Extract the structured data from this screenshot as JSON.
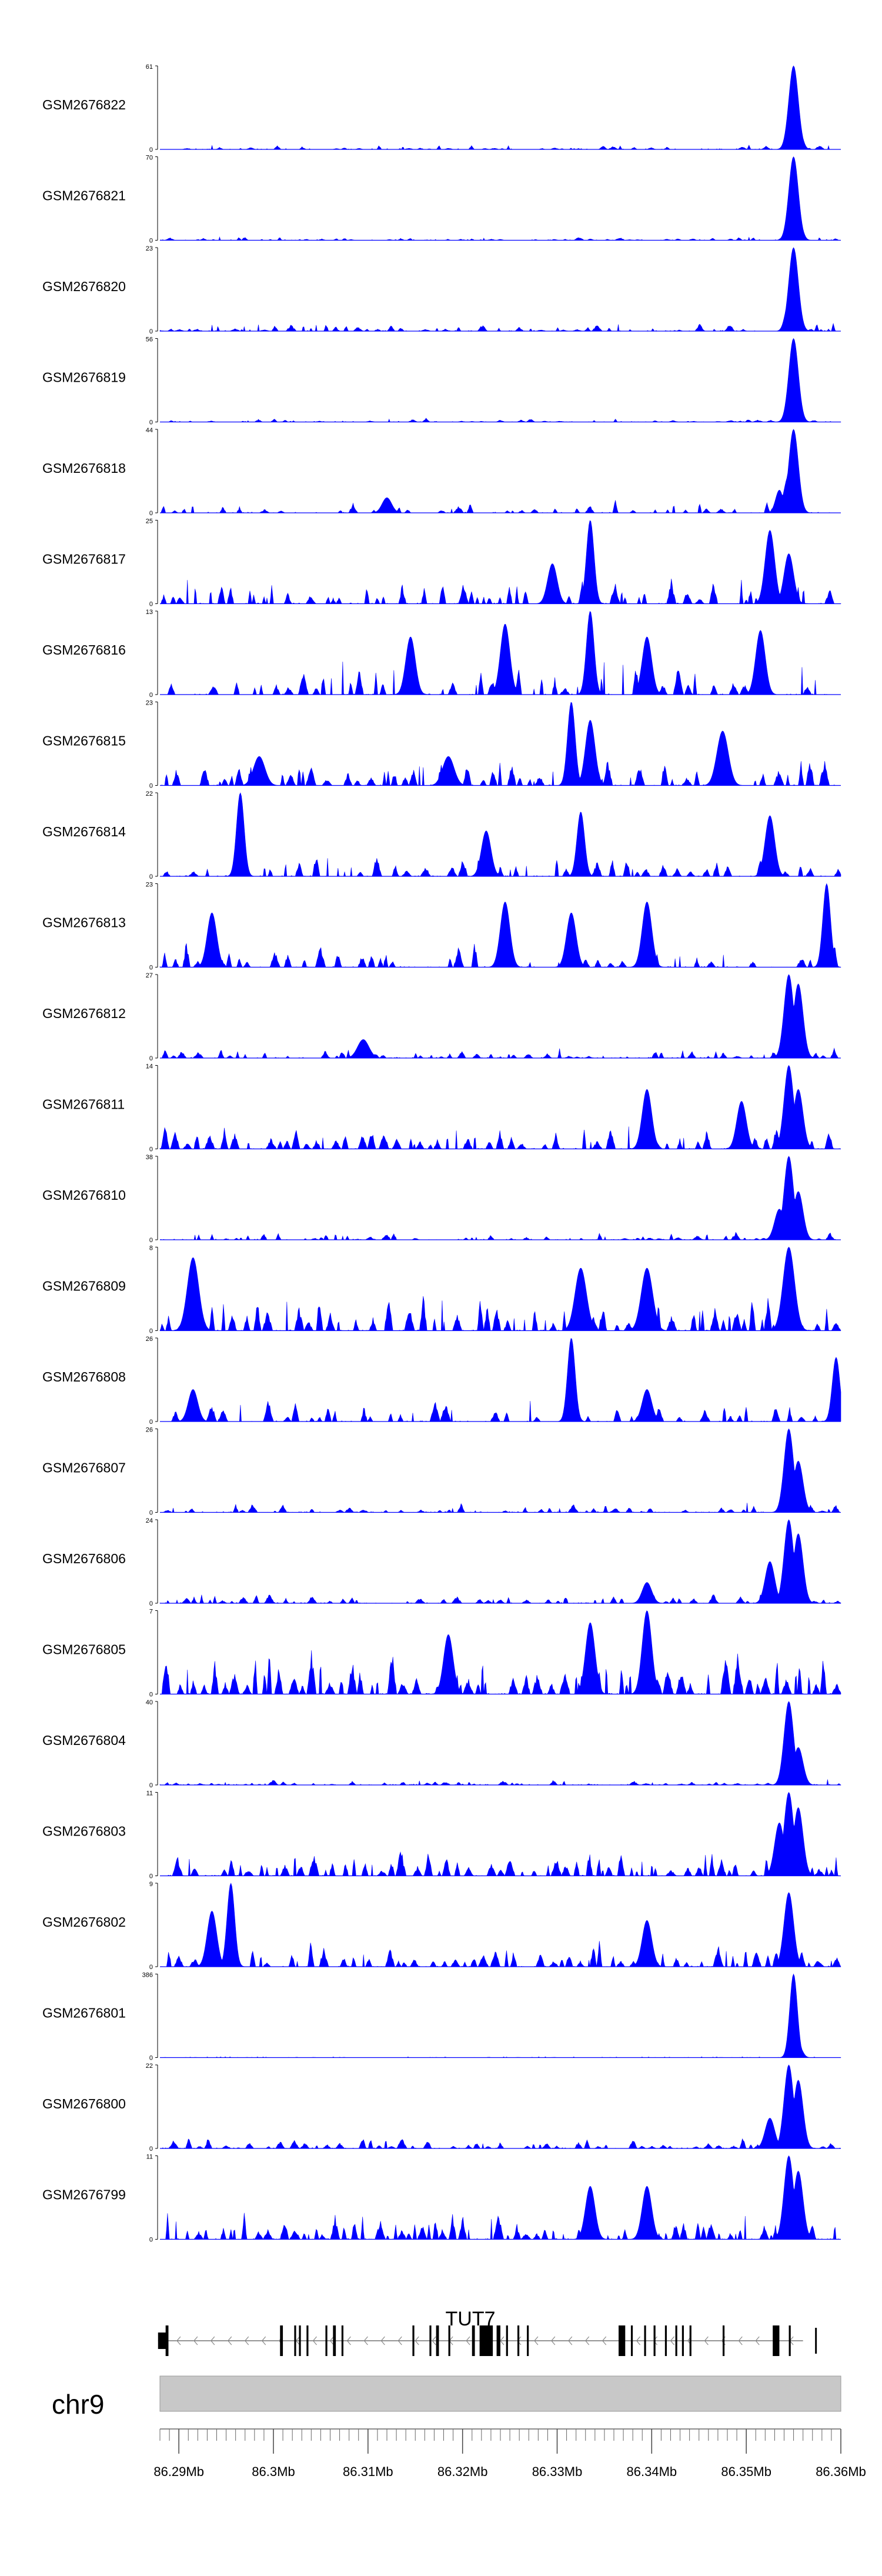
{
  "chart_data": {
    "type": "area",
    "genome": "chr9",
    "gene": "TUT7",
    "strand": "-",
    "x_unit": "Mb",
    "xlim": [
      86.288,
      86.36
    ],
    "x_ticks": [
      86.29,
      86.3,
      86.31,
      86.32,
      86.33,
      86.34,
      86.35,
      86.36
    ],
    "x_tick_labels": [
      "86.29Mb",
      "86.3Mb",
      "86.31Mb",
      "86.32Mb",
      "86.33Mb",
      "86.34Mb",
      "86.35Mb",
      "86.36Mb"
    ],
    "fill_color": "#0000ff",
    "gene_color": "#000000",
    "ideogram_color": "#c8c8c8",
    "tracks": [
      {
        "name": "GSM2676822",
        "ymax": 61,
        "ymin": 0,
        "peaks": [
          [
            86.355,
            61,
            0.0005
          ],
          [
            86.3555,
            18,
            0.0004
          ]
        ],
        "noise": 0.06,
        "density": 0.35,
        "seed": 22
      },
      {
        "name": "GSM2676821",
        "ymax": 70,
        "ymin": 0,
        "peaks": [
          [
            86.355,
            70,
            0.0005
          ],
          [
            86.3555,
            20,
            0.0004
          ]
        ],
        "noise": 0.05,
        "density": 0.35,
        "seed": 21
      },
      {
        "name": "GSM2676820",
        "ymax": 23,
        "ymin": 0,
        "peaks": [
          [
            86.355,
            23,
            0.0005
          ],
          [
            86.3545,
            8,
            0.0004
          ]
        ],
        "noise": 0.1,
        "density": 0.5,
        "seed": 20
      },
      {
        "name": "GSM2676819",
        "ymax": 56,
        "ymin": 0,
        "peaks": [
          [
            86.355,
            56,
            0.0005
          ],
          [
            86.3555,
            14,
            0.0004
          ]
        ],
        "noise": 0.05,
        "density": 0.3,
        "seed": 19
      },
      {
        "name": "GSM2676818",
        "ymax": 44,
        "ymin": 0,
        "peaks": [
          [
            86.355,
            44,
            0.0005
          ],
          [
            86.3545,
            20,
            0.0005
          ],
          [
            86.3535,
            12,
            0.0004
          ],
          [
            86.312,
            8,
            0.0005
          ]
        ],
        "noise": 0.18,
        "density": 0.3,
        "seed": 18
      },
      {
        "name": "GSM2676817",
        "ymax": 25,
        "ymin": 0,
        "peaks": [
          [
            86.3335,
            25,
            0.0004
          ],
          [
            86.3525,
            22,
            0.0005
          ],
          [
            86.3545,
            15,
            0.0005
          ],
          [
            86.3295,
            12,
            0.0005
          ]
        ],
        "noise": 0.35,
        "density": 0.5,
        "seed": 17
      },
      {
        "name": "GSM2676816",
        "ymax": 13,
        "ymin": 0,
        "peaks": [
          [
            86.3335,
            13,
            0.0004
          ],
          [
            86.3245,
            11,
            0.0005
          ],
          [
            86.3515,
            10,
            0.0005
          ],
          [
            86.3395,
            9,
            0.0005
          ],
          [
            86.3145,
            9,
            0.0005
          ]
        ],
        "noise": 0.45,
        "density": 0.45,
        "seed": 16
      },
      {
        "name": "GSM2676815",
        "ymax": 23,
        "ymin": 0,
        "peaks": [
          [
            86.3315,
            23,
            0.0004
          ],
          [
            86.3335,
            18,
            0.0005
          ],
          [
            86.3475,
            15,
            0.0006
          ],
          [
            86.2985,
            8,
            0.0006
          ],
          [
            86.3185,
            8,
            0.0006
          ]
        ],
        "noise": 0.35,
        "density": 0.45,
        "seed": 15
      },
      {
        "name": "GSM2676814",
        "ymax": 22,
        "ymin": 0,
        "peaks": [
          [
            86.2965,
            22,
            0.0004
          ],
          [
            86.3325,
            17,
            0.0004
          ],
          [
            86.3525,
            16,
            0.0005
          ],
          [
            86.3225,
            12,
            0.0005
          ]
        ],
        "noise": 0.3,
        "density": 0.5,
        "seed": 14
      },
      {
        "name": "GSM2676813",
        "ymax": 23,
        "ymin": 0,
        "peaks": [
          [
            86.3585,
            23,
            0.0004
          ],
          [
            86.3245,
            18,
            0.0005
          ],
          [
            86.3395,
            18,
            0.0005
          ],
          [
            86.2935,
            15,
            0.0005
          ],
          [
            86.3315,
            15,
            0.0005
          ]
        ],
        "noise": 0.35,
        "density": 0.4,
        "seed": 13
      },
      {
        "name": "GSM2676812",
        "ymax": 27,
        "ymin": 0,
        "peaks": [
          [
            86.3545,
            27,
            0.0005
          ],
          [
            86.3555,
            24,
            0.0005
          ],
          [
            86.3095,
            6,
            0.0006
          ]
        ],
        "noise": 0.12,
        "density": 0.45,
        "seed": 12
      },
      {
        "name": "GSM2676811",
        "ymax": 14,
        "ymin": 0,
        "peaks": [
          [
            86.3545,
            14,
            0.0005
          ],
          [
            86.3555,
            10,
            0.0005
          ],
          [
            86.3395,
            10,
            0.0005
          ],
          [
            86.3495,
            8,
            0.0005
          ]
        ],
        "noise": 0.3,
        "density": 0.6,
        "seed": 11
      },
      {
        "name": "GSM2676810",
        "ymax": 38,
        "ymin": 0,
        "peaks": [
          [
            86.3545,
            38,
            0.0005
          ],
          [
            86.3555,
            22,
            0.0005
          ],
          [
            86.3535,
            14,
            0.0005
          ]
        ],
        "noise": 0.1,
        "density": 0.4,
        "seed": 10
      },
      {
        "name": "GSM2676809",
        "ymax": 8,
        "ymin": 0,
        "peaks": [
          [
            86.3545,
            8,
            0.0006
          ],
          [
            86.2915,
            7,
            0.0006
          ],
          [
            86.3325,
            6,
            0.0006
          ],
          [
            86.3395,
            6,
            0.0006
          ]
        ],
        "noise": 0.5,
        "density": 0.8,
        "seed": 9
      },
      {
        "name": "GSM2676808",
        "ymax": 26,
        "ymin": 0,
        "peaks": [
          [
            86.3315,
            26,
            0.0004
          ],
          [
            86.3595,
            20,
            0.0004
          ],
          [
            86.2915,
            10,
            0.0005
          ],
          [
            86.3395,
            10,
            0.0005
          ]
        ],
        "noise": 0.3,
        "density": 0.4,
        "seed": 8
      },
      {
        "name": "GSM2676807",
        "ymax": 26,
        "ymin": 0,
        "peaks": [
          [
            86.3545,
            26,
            0.0005
          ],
          [
            86.3555,
            16,
            0.0005
          ]
        ],
        "noise": 0.12,
        "density": 0.45,
        "seed": 7
      },
      {
        "name": "GSM2676806",
        "ymax": 24,
        "ymin": 0,
        "peaks": [
          [
            86.3545,
            24,
            0.0005
          ],
          [
            86.3555,
            20,
            0.0005
          ],
          [
            86.3525,
            12,
            0.0005
          ],
          [
            86.3395,
            6,
            0.0005
          ]
        ],
        "noise": 0.15,
        "density": 0.45,
        "seed": 6
      },
      {
        "name": "GSM2676805",
        "ymax": 7,
        "ymin": 0,
        "peaks": [
          [
            86.3395,
            7,
            0.0005
          ],
          [
            86.3335,
            6,
            0.0005
          ],
          [
            86.3185,
            5,
            0.0005
          ]
        ],
        "noise": 0.6,
        "density": 0.95,
        "seed": 5
      },
      {
        "name": "GSM2676804",
        "ymax": 40,
        "ymin": 0,
        "peaks": [
          [
            86.3545,
            40,
            0.0005
          ],
          [
            86.3555,
            18,
            0.0005
          ]
        ],
        "noise": 0.08,
        "density": 0.45,
        "seed": 4
      },
      {
        "name": "GSM2676803",
        "ymax": 11,
        "ymin": 0,
        "peaks": [
          [
            86.3545,
            11,
            0.0005
          ],
          [
            86.3555,
            9,
            0.0005
          ],
          [
            86.3535,
            7,
            0.0005
          ]
        ],
        "noise": 0.35,
        "density": 0.7,
        "seed": 3
      },
      {
        "name": "GSM2676802",
        "ymax": 9,
        "ymin": 0,
        "peaks": [
          [
            86.2955,
            9,
            0.0004
          ],
          [
            86.3545,
            8,
            0.0005
          ],
          [
            86.2935,
            6,
            0.0005
          ],
          [
            86.3395,
            5,
            0.0005
          ]
        ],
        "noise": 0.35,
        "density": 0.7,
        "seed": 2
      },
      {
        "name": "GSM2676801",
        "ymax": 386,
        "ymin": 0,
        "peaks": [
          [
            86.355,
            386,
            0.0004
          ],
          [
            86.3555,
            60,
            0.0004
          ]
        ],
        "noise": 0.005,
        "density": 0.4,
        "seed": 1
      },
      {
        "name": "GSM2676800",
        "ymax": 22,
        "ymin": 0,
        "peaks": [
          [
            86.3545,
            22,
            0.0005
          ],
          [
            86.3555,
            18,
            0.0005
          ],
          [
            86.3525,
            8,
            0.0005
          ]
        ],
        "noise": 0.15,
        "density": 0.55,
        "seed": 100
      },
      {
        "name": "GSM2676799",
        "ymax": 11,
        "ymin": 0,
        "peaks": [
          [
            86.3545,
            11,
            0.0005
          ],
          [
            86.3555,
            9,
            0.0005
          ],
          [
            86.3335,
            7,
            0.0005
          ],
          [
            86.3395,
            7,
            0.0005
          ]
        ],
        "noise": 0.35,
        "density": 0.7,
        "seed": 99
      }
    ],
    "gene_model": {
      "start": 86.2878,
      "end": 86.356,
      "exons": [
        [
          86.2878,
          86.2888
        ],
        [
          86.2886,
          86.2889
        ],
        [
          86.3007,
          86.301
        ],
        [
          86.3022,
          86.3024
        ],
        [
          86.3027,
          86.3029
        ],
        [
          86.3035,
          86.3037
        ],
        [
          86.3055,
          86.3057
        ],
        [
          86.3063,
          86.3066
        ],
        [
          86.3072,
          86.3074
        ],
        [
          86.3147,
          86.3149
        ],
        [
          86.3165,
          86.3167
        ],
        [
          86.3172,
          86.3175
        ],
        [
          86.3185,
          86.3187
        ],
        [
          86.321,
          86.3213
        ],
        [
          86.3218,
          86.3232
        ],
        [
          86.3236,
          86.324
        ],
        [
          86.3246,
          86.3248
        ],
        [
          86.3258,
          86.326
        ],
        [
          86.3268,
          86.327
        ],
        [
          86.3365,
          86.3372
        ],
        [
          86.3378,
          86.338
        ],
        [
          86.3392,
          86.3394
        ],
        [
          86.3402,
          86.3404
        ],
        [
          86.3414,
          86.3416
        ],
        [
          86.3425,
          86.3427
        ],
        [
          86.3432,
          86.3434
        ],
        [
          86.344,
          86.3442
        ],
        [
          86.3475,
          86.3477
        ],
        [
          86.3528,
          86.3535
        ],
        [
          86.3545,
          86.3547
        ]
      ]
    }
  }
}
